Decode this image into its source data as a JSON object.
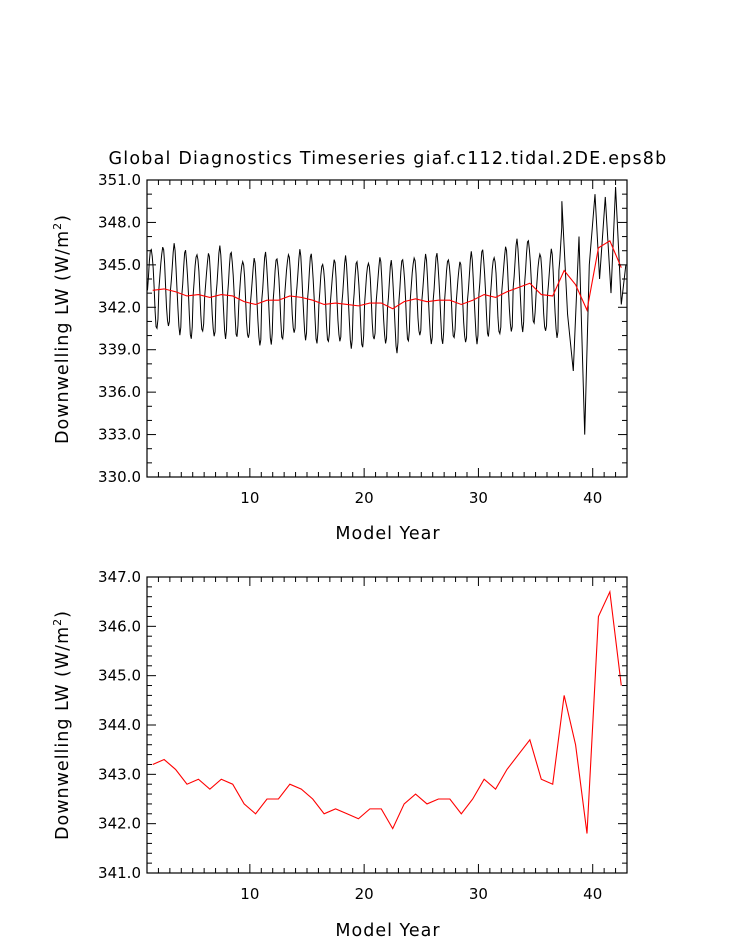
{
  "title": "Global Diagnostics Timeseries giaf.c112.tidal.2DE.eps8b",
  "colors": {
    "monthly": "#000000",
    "annual": "#ff0000"
  },
  "chart_data": [
    {
      "type": "line",
      "xlabel": "Model Year",
      "ylabel_main": "Downwelling LW (W/m",
      "ylabel_sup": "2",
      "ylabel_tail": ")",
      "xlim": [
        1,
        43
      ],
      "ylim": [
        330.0,
        351.0
      ],
      "xticks": [
        10,
        20,
        30,
        40
      ],
      "yticks": [
        "330.0",
        "333.0",
        "336.0",
        "339.0",
        "342.0",
        "345.0",
        "348.0",
        "351.0"
      ],
      "grid": false,
      "series": [
        {
          "style": "monthly",
          "color": "#000000",
          "seasonal_cycle": [
            0.0,
            0.9,
            2.0,
            2.9,
            3.3,
            2.8,
            1.7,
            0.2,
            -1.4,
            -2.6,
            -3.0,
            -2.4
          ],
          "year_offset": 0.5,
          "annual_base": [
            343.2,
            343.3,
            343.1,
            342.8,
            342.9,
            342.7,
            342.9,
            342.8,
            342.4,
            342.2,
            342.5,
            342.5,
            342.8,
            342.7,
            342.5,
            342.2,
            342.3,
            342.2,
            342.1,
            342.3,
            342.3,
            341.9,
            342.4,
            342.6,
            342.4,
            342.5,
            342.5,
            342.2,
            342.5,
            342.9,
            342.7,
            343.1,
            343.4,
            343.7,
            342.9,
            342.8,
            344.6,
            343.6,
            341.8,
            346.2,
            346.7,
            344.8
          ],
          "anomalies": [
            {
              "year": 37.3,
              "value": 349.5
            },
            {
              "year": 37.8,
              "value": 341.5
            },
            {
              "year": 38.3,
              "value": 337.5
            },
            {
              "year": 38.8,
              "value": 347.0
            },
            {
              "year": 39.3,
              "value": 333.0
            },
            {
              "year": 39.7,
              "value": 345.0
            },
            {
              "year": 40.2,
              "value": 350.0
            },
            {
              "year": 40.6,
              "value": 344.0
            },
            {
              "year": 41.1,
              "value": 349.8
            },
            {
              "year": 41.6,
              "value": 343.0
            },
            {
              "year": 42.0,
              "value": 350.5
            },
            {
              "year": 42.5,
              "value": 342.2
            },
            {
              "year": 42.9,
              "value": 345.0
            }
          ]
        },
        {
          "style": "annual",
          "color": "#ff0000",
          "x": [
            1.5,
            2.5,
            3.5,
            4.5,
            5.5,
            6.5,
            7.5,
            8.5,
            9.5,
            10.5,
            11.5,
            12.5,
            13.5,
            14.5,
            15.5,
            16.5,
            17.5,
            18.5,
            19.5,
            20.5,
            21.5,
            22.5,
            23.5,
            24.5,
            25.5,
            26.5,
            27.5,
            28.5,
            29.5,
            30.5,
            31.5,
            32.5,
            33.5,
            34.5,
            35.5,
            36.5,
            37.5,
            38.5,
            39.5,
            40.5,
            41.5,
            42.5
          ],
          "values": [
            343.2,
            343.3,
            343.1,
            342.8,
            342.9,
            342.7,
            342.9,
            342.8,
            342.4,
            342.2,
            342.5,
            342.5,
            342.8,
            342.7,
            342.5,
            342.2,
            342.3,
            342.2,
            342.1,
            342.3,
            342.3,
            341.9,
            342.4,
            342.6,
            342.4,
            342.5,
            342.5,
            342.2,
            342.5,
            342.9,
            342.7,
            343.1,
            343.4,
            343.7,
            342.9,
            342.8,
            344.6,
            343.6,
            341.8,
            346.2,
            346.7,
            344.8
          ]
        }
      ]
    },
    {
      "type": "line",
      "xlabel": "Model Year",
      "ylabel_main": "Downwelling LW (W/m",
      "ylabel_sup": "2",
      "ylabel_tail": ")",
      "xlim": [
        1,
        43
      ],
      "ylim": [
        341.0,
        347.0
      ],
      "xticks": [
        10,
        20,
        30,
        40
      ],
      "yticks": [
        "341.0",
        "342.0",
        "343.0",
        "344.0",
        "345.0",
        "346.0",
        "347.0"
      ],
      "grid": false,
      "series": [
        {
          "style": "annual",
          "color": "#ff0000",
          "x": [
            1.5,
            2.5,
            3.5,
            4.5,
            5.5,
            6.5,
            7.5,
            8.5,
            9.5,
            10.5,
            11.5,
            12.5,
            13.5,
            14.5,
            15.5,
            16.5,
            17.5,
            18.5,
            19.5,
            20.5,
            21.5,
            22.5,
            23.5,
            24.5,
            25.5,
            26.5,
            27.5,
            28.5,
            29.5,
            30.5,
            31.5,
            32.5,
            33.5,
            34.5,
            35.5,
            36.5,
            37.5,
            38.5,
            39.5,
            40.5,
            41.5,
            42.5
          ],
          "values": [
            343.2,
            343.3,
            343.1,
            342.8,
            342.9,
            342.7,
            342.9,
            342.8,
            342.4,
            342.2,
            342.5,
            342.5,
            342.8,
            342.7,
            342.5,
            342.2,
            342.3,
            342.2,
            342.1,
            342.3,
            342.3,
            341.9,
            342.4,
            342.6,
            342.4,
            342.5,
            342.5,
            342.2,
            342.5,
            342.9,
            342.7,
            343.1,
            343.4,
            343.7,
            342.9,
            342.8,
            344.6,
            343.6,
            341.8,
            346.2,
            346.7,
            344.8
          ]
        }
      ]
    }
  ]
}
